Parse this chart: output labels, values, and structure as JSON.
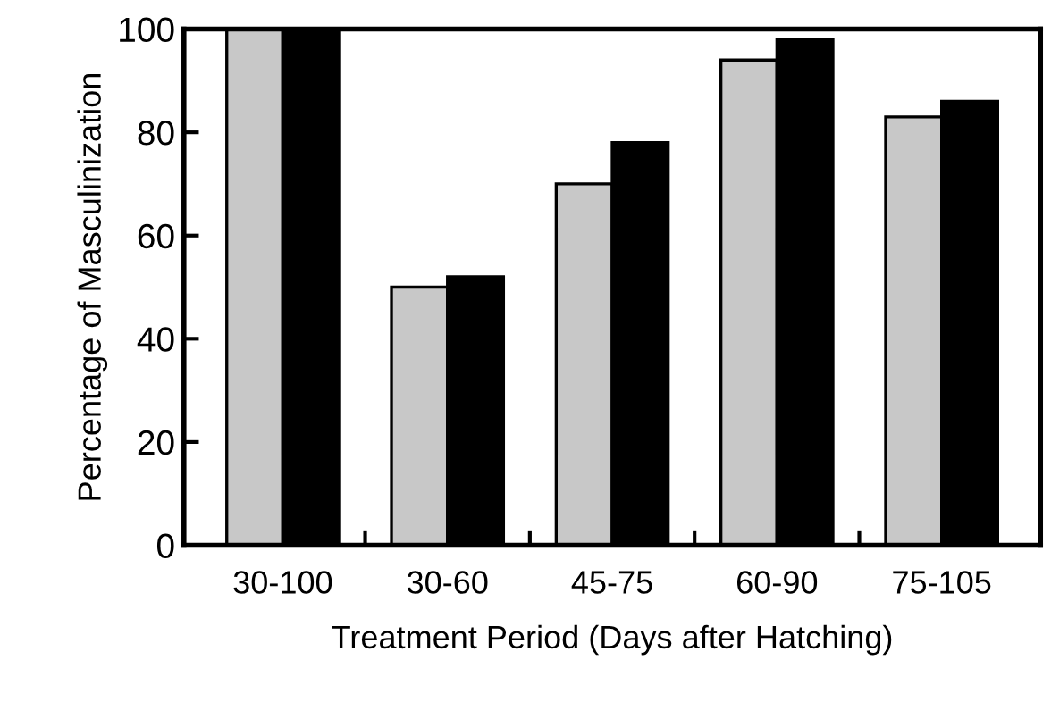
{
  "chart_data": {
    "type": "bar",
    "xlabel": "Treatment Period (Days after Hatching)",
    "ylabel": "Percentage of Masculinization",
    "categories": [
      "30-100",
      "30-60",
      "45-75",
      "60-90",
      "75-105"
    ],
    "series": [
      {
        "color": "#c8c8c8",
        "values": [
          100,
          50,
          70,
          94,
          83
        ]
      },
      {
        "color": "#000000",
        "values": [
          100,
          52,
          78,
          98,
          86
        ]
      }
    ],
    "ylim": [
      0,
      100
    ],
    "yticks": [
      0,
      20,
      40,
      60,
      80,
      100
    ],
    "grid": false,
    "legend": false
  }
}
